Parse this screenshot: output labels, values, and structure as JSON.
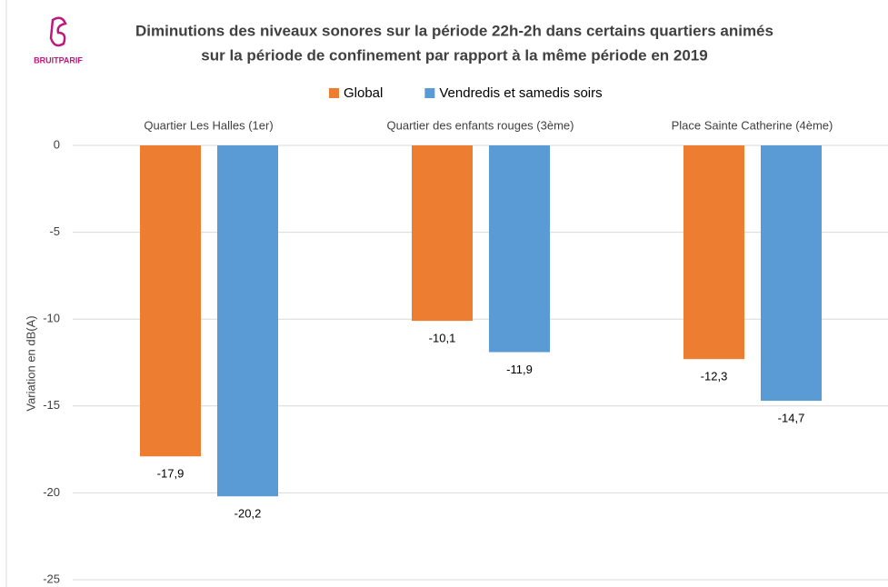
{
  "chart_data": {
    "type": "bar",
    "logo_text": "BRUITPARIF",
    "title": [
      "Diminutions  des niveaux sonores  sur la période 22h-2h dans certains quartiers animés",
      "sur la période de confinement par rapport à la même période en 2019"
    ],
    "y_label": "Variation en dB(A)",
    "categories": [
      "Quartier Les Halles (1er)",
      "Quartier des enfants rouges (3ème)",
      "Place Sainte Catherine (4ème)"
    ],
    "series": [
      {
        "name": "Global",
        "color": "#ed7d31",
        "values": [
          -17.9,
          -10.1,
          -12.3
        ],
        "value_labels": [
          "-17,9",
          "-10,1",
          "-12,3"
        ]
      },
      {
        "name": "Vendredis et samedis soirs",
        "color": "#5b9bd5",
        "values": [
          -20.2,
          -11.9,
          -14.7
        ],
        "value_labels": [
          "-20,2",
          "-11,9",
          "-14,7"
        ]
      }
    ],
    "ylim": [
      -25,
      0
    ],
    "yticks": [
      0,
      -5,
      -10,
      -15,
      -20,
      -25
    ],
    "grid": true,
    "legend": "top"
  }
}
